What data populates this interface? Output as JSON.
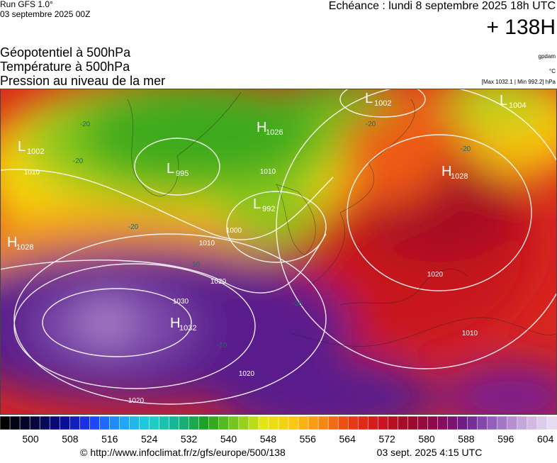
{
  "header": {
    "run": "Run GFS 1.0°",
    "run_date": "03 septembre 2025 00Z",
    "valid": "Echéance : lundi 8 septembre 2025 18h UTC",
    "lead": "+ 138H"
  },
  "layers": [
    "Géopotentiel à 500hPa",
    "Température à 500hPa",
    "Pression au niveau de la mer"
  ],
  "units": {
    "geopotential": "gpdam",
    "temperature": "°C",
    "pressure": "[Max 1032.1 | Min 992.2] hPa"
  },
  "pressure_centers": [
    {
      "type": "L",
      "value": "1002"
    },
    {
      "type": "L",
      "value": "1004"
    },
    {
      "type": "H",
      "value": "1026"
    },
    {
      "type": "L",
      "value": "1002"
    },
    {
      "type": "L",
      "value": "995"
    },
    {
      "type": "H",
      "value": "1028"
    },
    {
      "type": "L",
      "value": "992"
    },
    {
      "type": "H",
      "value": "1028"
    },
    {
      "type": "H",
      "value": "1032"
    }
  ],
  "isobar_labels": [
    "1010",
    "1010",
    "1000",
    "1010",
    "1020",
    "1030",
    "1020",
    "1020",
    "1020",
    "1010"
  ],
  "temperature_labels": [
    "-20",
    "-20",
    "-20",
    "-10",
    "-20",
    "-10",
    "-20",
    "-20"
  ],
  "colorbar_labels": [
    "500",
    "508",
    "516",
    "524",
    "532",
    "540",
    "548",
    "556",
    "564",
    "572",
    "580",
    "588",
    "596",
    "604"
  ],
  "footer": {
    "source": "© http://www.infoclimat.fr/z/gfs/europe/500/138",
    "generated": "03 sept. 2025  4:15 UTC"
  }
}
